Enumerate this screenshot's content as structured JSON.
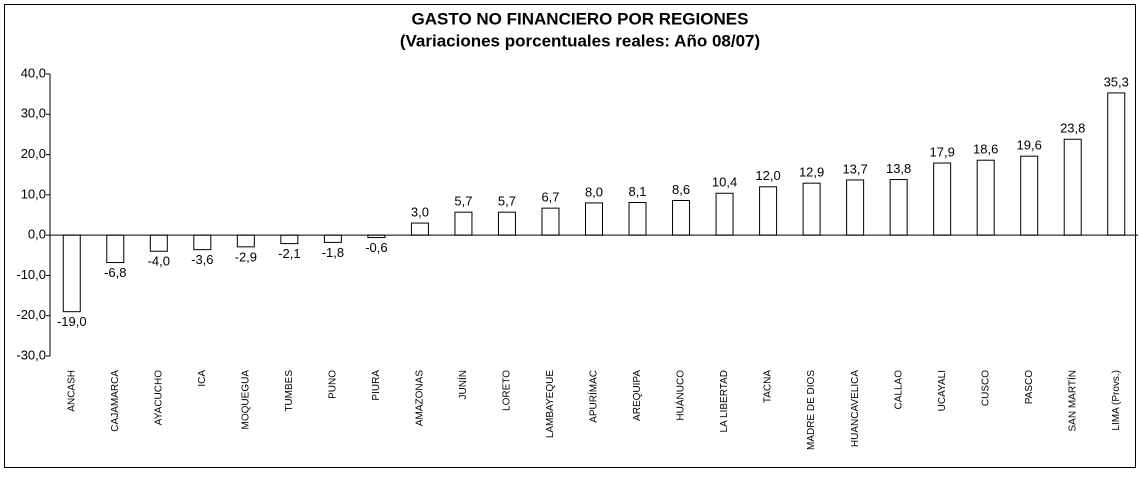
{
  "chart_data": {
    "type": "bar",
    "title": "GASTO NO FINANCIERO POR REGIONES",
    "subtitle": "(Variaciones porcentuales reales: Año 08/07)",
    "categories": [
      "ANCASH",
      "CAJAMARCA",
      "AYACUCHO",
      "ICA",
      "MOQUEGUA",
      "TUMBES",
      "PUNO",
      "PIURA",
      "AMAZONAS",
      "JUNÍN",
      "LORETO",
      "LAMBAYEQUE",
      "APURÍMAC",
      "AREQUIPA",
      "HUÁNUCO",
      "LA LIBERTAD",
      "TACNA",
      "MADRE DE DIOS",
      "HUANCAVELICA",
      "CALLAO",
      "UCAYALI",
      "CUSCO",
      "PASCO",
      "SAN MARTÍN",
      "LIMA (Provs.)"
    ],
    "values": [
      -19.0,
      -6.8,
      -4.0,
      -3.6,
      -2.9,
      -2.1,
      -1.8,
      -0.6,
      3.0,
      5.7,
      5.7,
      6.7,
      8.0,
      8.1,
      8.6,
      10.4,
      12.0,
      12.9,
      13.7,
      13.8,
      17.9,
      18.6,
      19.6,
      23.8,
      35.3
    ],
    "value_labels": [
      "-19,0",
      "-6,8",
      "-4,0",
      "-3,6",
      "-2,9",
      "-2,1",
      "-1,8",
      "-0,6",
      "3,0",
      "5,7",
      "5,7",
      "6,7",
      "8,0",
      "8,1",
      "8,6",
      "10,4",
      "12,0",
      "12,9",
      "13,7",
      "13,8",
      "17,9",
      "18,6",
      "19,6",
      "23,8",
      "35,3"
    ],
    "color": "#ffffff",
    "ylim": [
      -30,
      40
    ],
    "yticks": [
      {
        "value": -30,
        "label": "-30,0"
      },
      {
        "value": -20,
        "label": "-20,0"
      },
      {
        "value": -10,
        "label": "-10,0"
      },
      {
        "value": 0,
        "label": "0,0"
      },
      {
        "value": 10,
        "label": "10,0"
      },
      {
        "value": 20,
        "label": "20,0"
      },
      {
        "value": 30,
        "label": "30,0"
      },
      {
        "value": 40,
        "label": "40,0"
      }
    ],
    "grid": false
  }
}
